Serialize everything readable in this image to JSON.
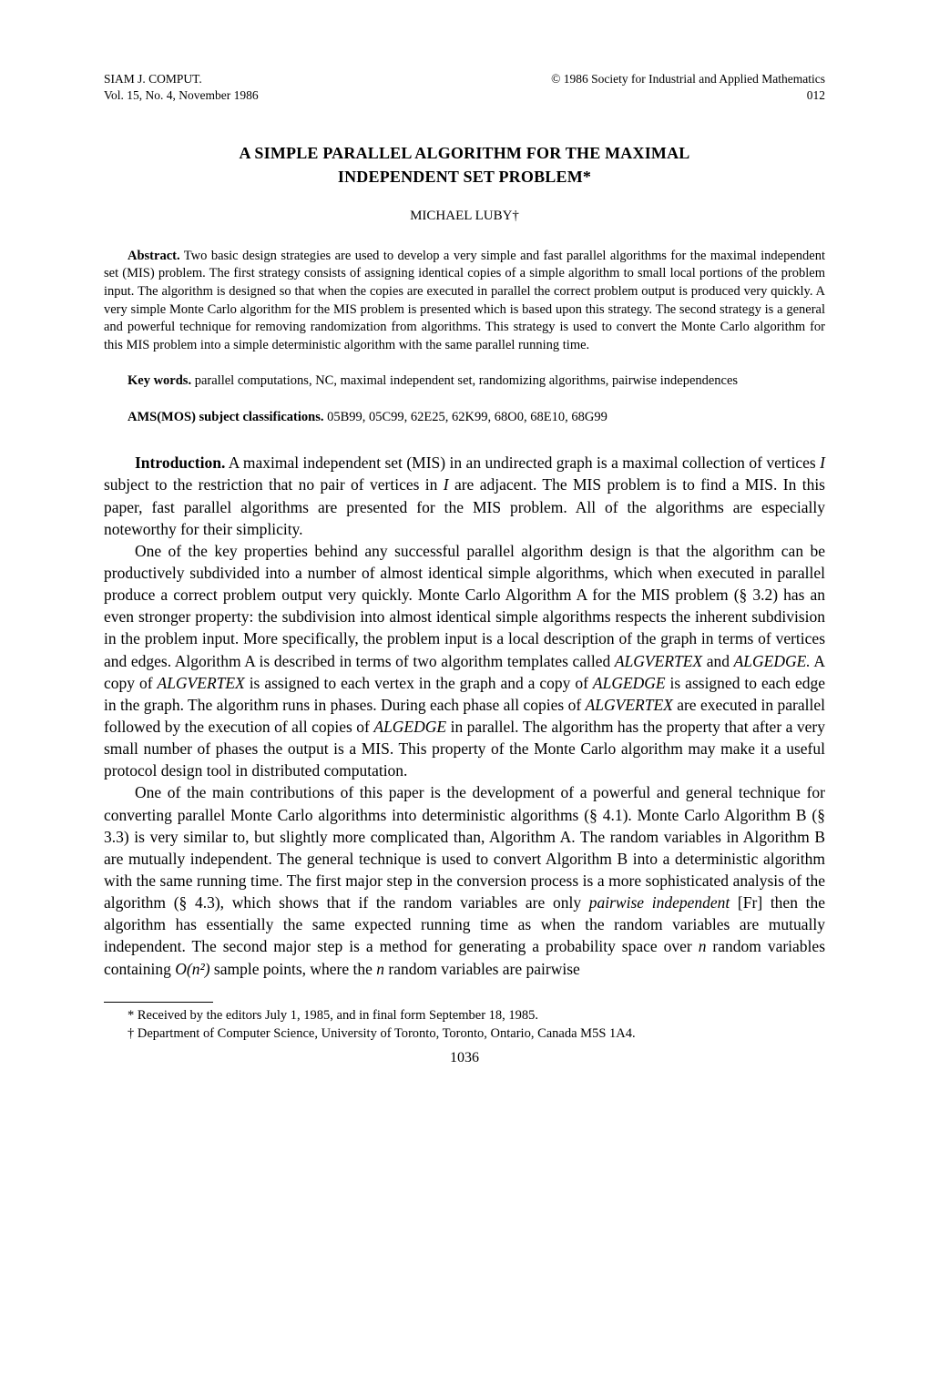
{
  "header": {
    "journal": "SIAM J. COMPUT.",
    "volume": "Vol. 15, No. 4, November 1986",
    "copyright": "© 1986 Society for Industrial and Applied Mathematics",
    "code": "012"
  },
  "title_line1": "A SIMPLE PARALLEL ALGORITHM FOR THE MAXIMAL",
  "title_line2": "INDEPENDENT SET PROBLEM*",
  "author": "MICHAEL LUBY†",
  "abstract": {
    "head": "Abstract.",
    "text": " Two basic design strategies are used to develop a very simple and fast parallel algorithms for the maximal independent set (MIS) problem. The first strategy consists of assigning identical copies of a simple algorithm to small local portions of the problem input. The algorithm is designed so that when the copies are executed in parallel the correct problem output is produced very quickly. A very simple Monte Carlo algorithm for the MIS problem is presented which is based upon this strategy. The second strategy is a general and powerful technique for removing randomization from algorithms. This strategy is used to convert the Monte Carlo algorithm for this MIS problem into a simple deterministic algorithm with the same parallel running time."
  },
  "keywords": {
    "head": "Key words.",
    "text": " parallel computations, NC, maximal independent set, randomizing algorithms, pairwise independences"
  },
  "ams": {
    "head": "AMS(MOS) subject classifications.",
    "text": " 05B99, 05C99, 62E25, 62K99, 68O0, 68E10, 68G99"
  },
  "intro": {
    "head": "Introduction.",
    "p1a": " A maximal independent set (MIS) in an undirected graph is a maximal collection of vertices ",
    "p1b": " subject to the restriction that no pair of vertices in ",
    "p1c": " are adjacent. The MIS problem is to find a MIS. In this paper, fast parallel algorithms are presented for the MIS problem. All of the algorithms are especially noteworthy for their simplicity.",
    "p2a": "One of the key properties behind any successful parallel algorithm design is that the algorithm can be productively subdivided into a number of almost identical simple algorithms, which when executed in parallel produce a correct problem output very quickly. Monte Carlo Algorithm A for the MIS problem (§ 3.2) has an even stronger property: the subdivision into almost identical simple algorithms respects the inherent subdivision in the problem input. More specifically, the problem input is a local description of the graph in terms of vertices and edges. Algorithm A is described in terms of two algorithm templates called ",
    "p2b": " and ",
    "p2c": " A copy of ",
    "p2d": " is assigned to each vertex in the graph and a copy of ",
    "p2e": " is assigned to each edge in the graph. The algorithm runs in phases. During each phase all copies of ",
    "p2f": " are executed in parallel followed by the execution of all copies of ",
    "p2g": " in parallel. The algorithm has the property that after a very small number of phases the output is a MIS. This property of the Monte Carlo algorithm may make it a useful protocol design tool in distributed computation.",
    "p3a": "One of the main contributions of this paper is the development of a powerful and general technique for converting parallel Monte Carlo algorithms into deterministic algorithms (§ 4.1). Monte Carlo Algorithm B (§ 3.3) is very similar to, but slightly more complicated than, Algorithm A. The random variables in Algorithm B are mutually independent. The general technique is used to convert Algorithm B into a deterministic algorithm with the same running time. The first major step in the conversion process is a more sophisticated analysis of the algorithm (§ 4.3), which shows that if the random variables are only ",
    "p3b": " [Fr] then the algorithm has essentially the same expected running time as when the random variables are mutually independent. The second major step is a method for generating a probability space over ",
    "p3c": " random variables containing ",
    "p3d": " sample points, where the ",
    "p3e": " random variables are pairwise"
  },
  "terms": {
    "I": "I",
    "ALGVERTEX": "ALGVERTEX",
    "ALGEDGE": "ALGEDGE",
    "ALGEDGE_dot": "ALGEDGE.",
    "pairwise_independent": "pairwise independent",
    "n": "n",
    "On2": "O(n²)"
  },
  "footnotes": {
    "f1": "* Received by the editors July 1, 1985, and in final form September 18, 1985.",
    "f2": "† Department of Computer Science, University of Toronto, Toronto, Ontario, Canada M5S 1A4."
  },
  "page_number": "1036",
  "style": {
    "page_bg": "#ffffff",
    "text_color": "#000000",
    "body_font_size_pt": 17.5,
    "small_font_size_pt": 14.5,
    "header_font_size_pt": 13.5,
    "title_font_size_pt": 18,
    "author_font_size_pt": 15,
    "font_family": "Times New Roman"
  }
}
